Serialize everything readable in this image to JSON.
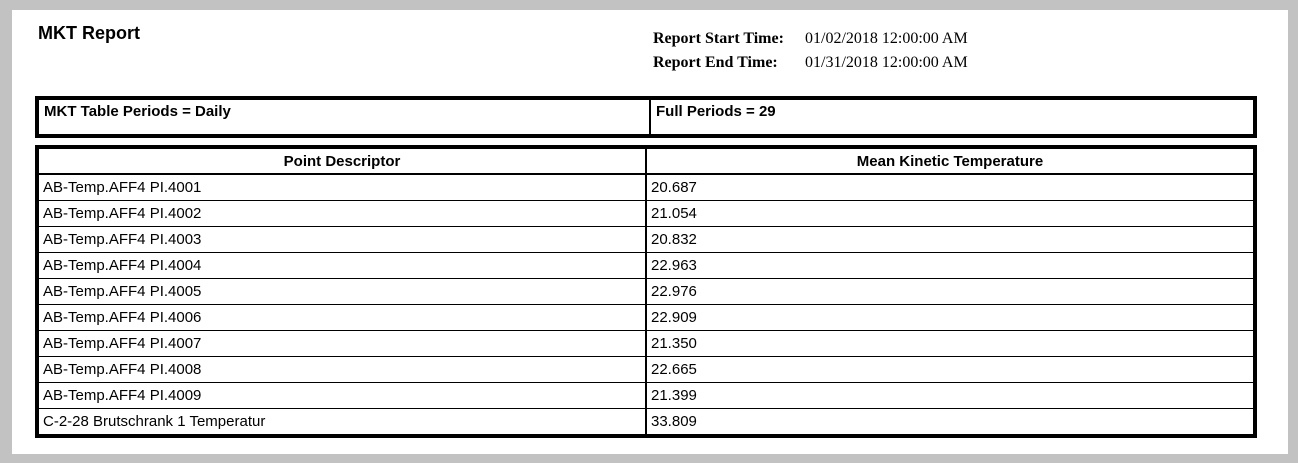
{
  "title": "MKT Report",
  "meta": {
    "start_label": "Report Start Time:",
    "start_value": "01/02/2018 12:00:00 AM",
    "end_label": "Report End Time:",
    "end_value": "01/31/2018 12:00:00 AM"
  },
  "summary": {
    "periods": "MKT Table Periods = Daily",
    "full_periods": "Full Periods = 29"
  },
  "table": {
    "columns": [
      "Point Descriptor",
      "Mean Kinetic Temperature"
    ],
    "rows": [
      {
        "descriptor": "AB-Temp.AFF4 PI.4001",
        "mkt": "20.687"
      },
      {
        "descriptor": "AB-Temp.AFF4 PI.4002",
        "mkt": "21.054"
      },
      {
        "descriptor": "AB-Temp.AFF4 PI.4003",
        "mkt": "20.832"
      },
      {
        "descriptor": "AB-Temp.AFF4 PI.4004",
        "mkt": "22.963"
      },
      {
        "descriptor": "AB-Temp.AFF4 PI.4005",
        "mkt": "22.976"
      },
      {
        "descriptor": "AB-Temp.AFF4 PI.4006",
        "mkt": "22.909"
      },
      {
        "descriptor": "AB-Temp.AFF4 PI.4007",
        "mkt": "21.350"
      },
      {
        "descriptor": "AB-Temp.AFF4 PI.4008",
        "mkt": "22.665"
      },
      {
        "descriptor": "AB-Temp.AFF4 PI.4009",
        "mkt": "21.399"
      },
      {
        "descriptor": "C-2-28 Brutschrank 1 Temperatur",
        "mkt": "33.809"
      }
    ]
  },
  "colors": {
    "frame": "#c2c2c2",
    "page_background": "#ffffff",
    "border": "#000000",
    "text": "#000000"
  }
}
